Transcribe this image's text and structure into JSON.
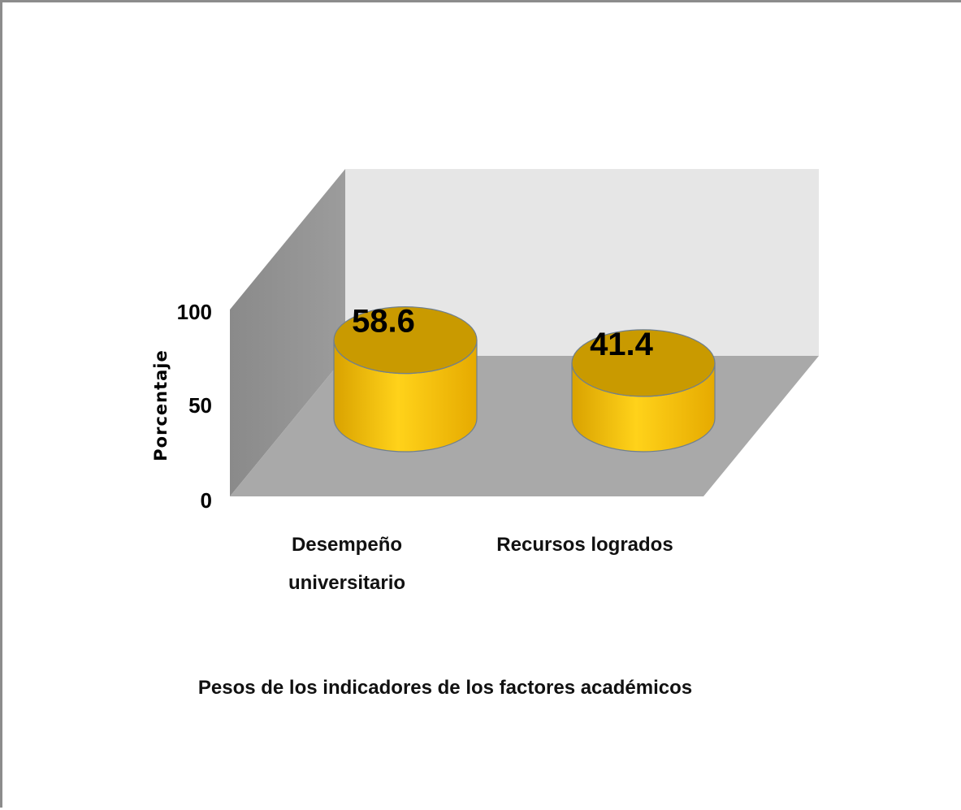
{
  "chart_data": {
    "type": "bar",
    "style": "3d-cylinder",
    "categories": [
      "Desempeño universitario",
      "Recursos logrados"
    ],
    "category_lines": [
      [
        "Desempeño",
        "universitario"
      ],
      [
        "Recursos logrados"
      ]
    ],
    "values": [
      58.6,
      41.4
    ],
    "data_labels": [
      "58.6",
      "41.4"
    ],
    "ylabel": "Porcentaje",
    "xlabel": "Pesos de los indicadores de los factores académicos",
    "ylim": [
      0,
      100
    ],
    "yticks": [
      "0",
      "50",
      "100"
    ],
    "legend": "none",
    "colors": {
      "bar_side": "#f2b705",
      "bar_top": "#c99a00",
      "bar_stroke": "#6f7f8f",
      "back_wall": "#e6e6e6",
      "side_wall": "#8e8e8e",
      "floor": "#a9a9a9"
    }
  }
}
